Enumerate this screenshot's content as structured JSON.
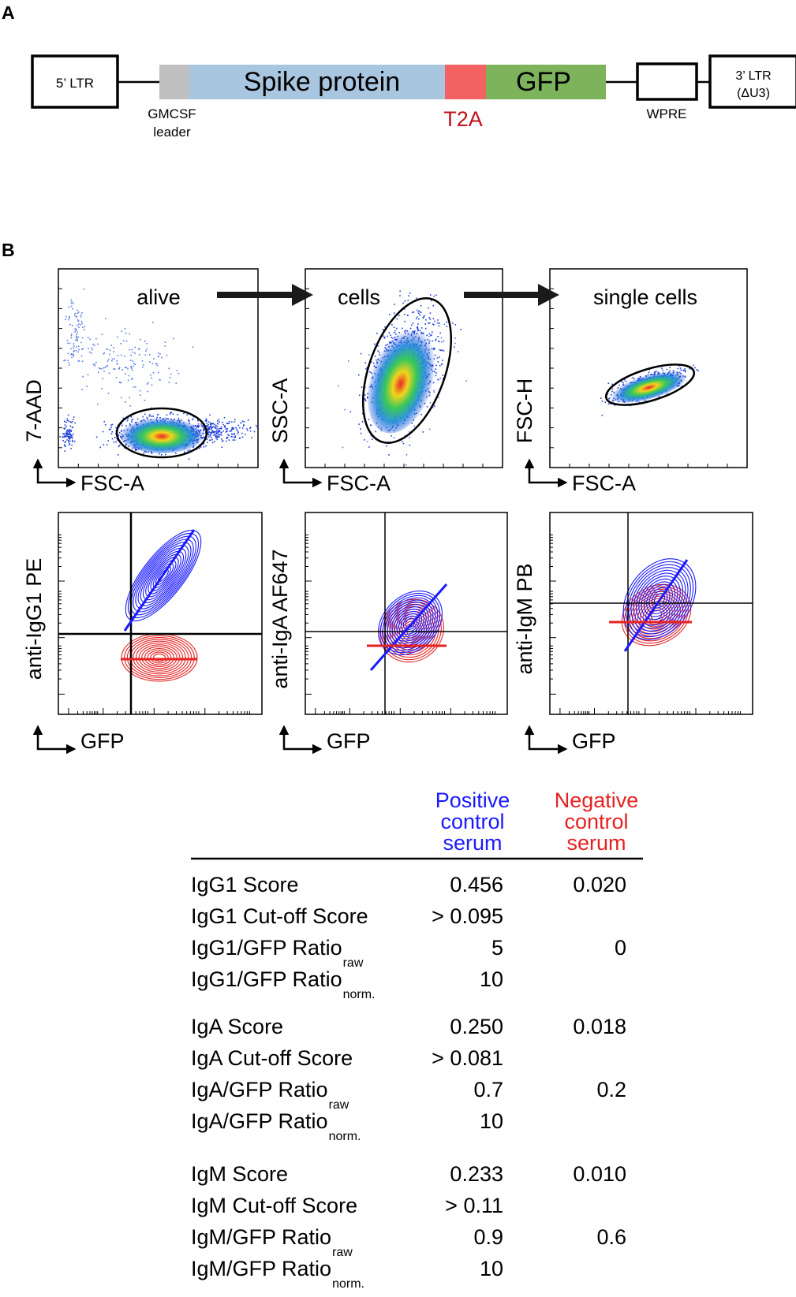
{
  "panel_a": {
    "label": "A",
    "ltr5": "5’ LTR",
    "ltr3_line1": "3’ LTR",
    "ltr3_line2": "(ΔU3)",
    "spike": "Spike protein",
    "gfp": "GFP",
    "t2a": "T2A",
    "gmcsf_line1": "GMCSF",
    "gmcsf_line2": "leader",
    "wpre": "WPRE",
    "colors": {
      "leader": "#c0c0c0",
      "spike": "#a9c6e0",
      "t2a": "#f26262",
      "gfp": "#7db35a",
      "t2a_text": "#c0101a"
    }
  },
  "panel_b": {
    "label": "B",
    "gating": [
      {
        "title": "alive",
        "ylabel": "7-AAD",
        "xlabel": "FSC-A"
      },
      {
        "title": "cells",
        "ylabel": "SSC-A",
        "xlabel": "FSC-A"
      },
      {
        "title": "single cells",
        "ylabel": "FSC-H",
        "xlabel": "FSC-A"
      }
    ],
    "contours": [
      {
        "ylabel": "anti-IgG1 PE",
        "xlabel": "GFP"
      },
      {
        "ylabel": "anti-IgA AF647",
        "xlabel": "GFP"
      },
      {
        "ylabel": "anti-IgM PB",
        "xlabel": "GFP"
      }
    ],
    "colors": {
      "positive": "#1a1aff",
      "negative": "#e52222"
    }
  },
  "table": {
    "headers": {
      "positive": [
        "Positive",
        "control",
        "serum"
      ],
      "negative": [
        "Negative",
        "control",
        "serum"
      ]
    },
    "groups": [
      [
        {
          "label": "IgG1 Score",
          "sub": "",
          "pos": "0.456",
          "neg": "0.020"
        },
        {
          "label": "IgG1 Cut-off Score",
          "sub": "",
          "pos": "> 0.095",
          "neg": ""
        },
        {
          "label": "IgG1/GFP Ratio",
          "sub": "raw",
          "pos": "5",
          "neg": "0"
        },
        {
          "label": "IgG1/GFP Ratio",
          "sub": "norm.",
          "pos": "10",
          "neg": ""
        }
      ],
      [
        {
          "label": "IgA Score",
          "sub": "",
          "pos": "0.250",
          "neg": "0.018"
        },
        {
          "label": "IgA Cut-off Score",
          "sub": "",
          "pos": "> 0.081",
          "neg": ""
        },
        {
          "label": "IgA/GFP Ratio",
          "sub": "raw",
          "pos": "0.7",
          "neg": "0.2"
        },
        {
          "label": "IgA/GFP Ratio",
          "sub": "norm.",
          "pos": "10",
          "neg": ""
        }
      ],
      [
        {
          "label": "IgM Score",
          "sub": "",
          "pos": "0.233",
          "neg": "0.010"
        },
        {
          "label": "IgM Cut-off Score",
          "sub": "",
          "pos": "> 0.11",
          "neg": ""
        },
        {
          "label": "IgM/GFP Ratio",
          "sub": "raw",
          "pos": "0.9",
          "neg": "0.6"
        },
        {
          "label": "IgM/GFP Ratio",
          "sub": "norm.",
          "pos": "10",
          "neg": ""
        }
      ]
    ]
  }
}
